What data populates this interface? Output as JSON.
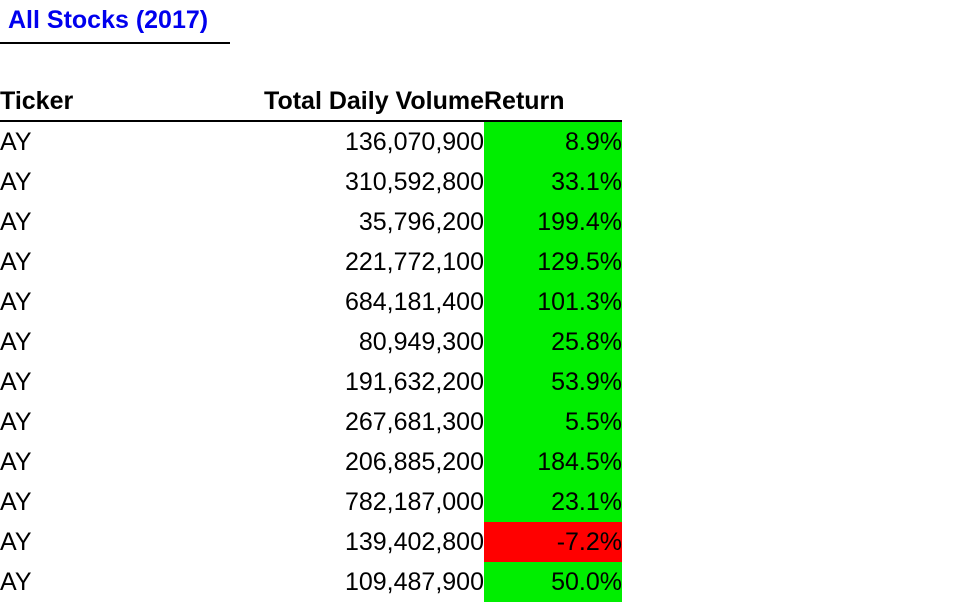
{
  "title": "All Stocks (2017)",
  "colors": {
    "title": "#0000ee",
    "positive": "#00ee00",
    "negative": "#ff0000"
  },
  "headers": {
    "ticker": "Ticker",
    "volume": "Total Daily Volume",
    "return": "Return"
  },
  "rows": [
    {
      "ticker": "AY",
      "volume": "136,070,900",
      "return": "8.9%",
      "positive": true
    },
    {
      "ticker": "AY",
      "volume": "310,592,800",
      "return": "33.1%",
      "positive": true
    },
    {
      "ticker": "AY",
      "volume": "35,796,200",
      "return": "199.4%",
      "positive": true
    },
    {
      "ticker": "AY",
      "volume": "221,772,100",
      "return": "129.5%",
      "positive": true
    },
    {
      "ticker": "AY",
      "volume": "684,181,400",
      "return": "101.3%",
      "positive": true
    },
    {
      "ticker": "AY",
      "volume": "80,949,300",
      "return": "25.8%",
      "positive": true
    },
    {
      "ticker": "AY",
      "volume": "191,632,200",
      "return": "53.9%",
      "positive": true
    },
    {
      "ticker": "AY",
      "volume": "267,681,300",
      "return": "5.5%",
      "positive": true
    },
    {
      "ticker": "AY",
      "volume": "206,885,200",
      "return": "184.5%",
      "positive": true
    },
    {
      "ticker": "AY",
      "volume": "782,187,000",
      "return": "23.1%",
      "positive": true
    },
    {
      "ticker": "AY",
      "volume": "139,402,800",
      "return": "-7.2%",
      "positive": false
    },
    {
      "ticker": "AY",
      "volume": "109,487,900",
      "return": "50.0%",
      "positive": true
    }
  ]
}
